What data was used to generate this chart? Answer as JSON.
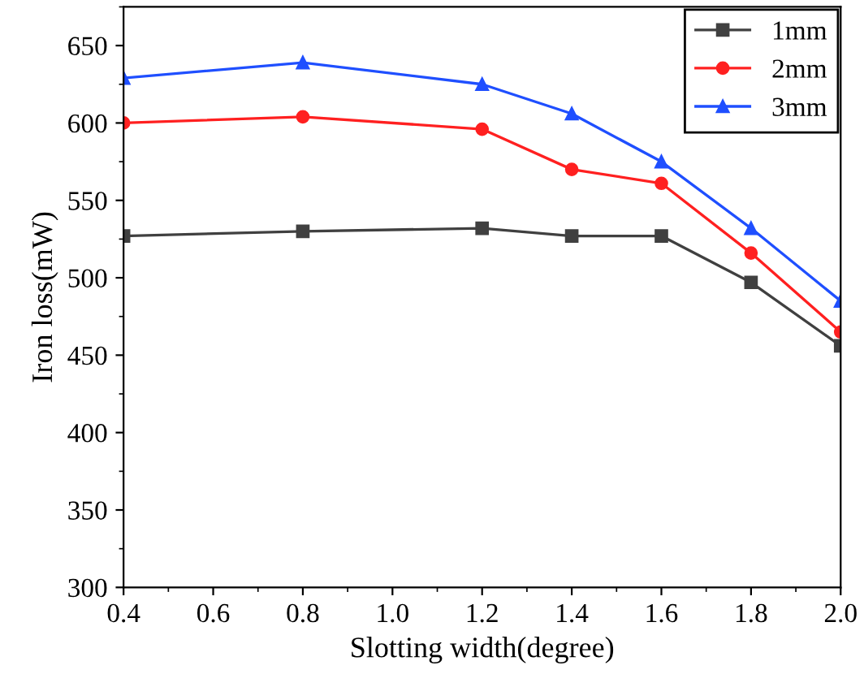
{
  "chart_data": {
    "type": "line",
    "xlabel": "Slotting width(degree)",
    "ylabel": "Iron loss(mW)",
    "x": [
      0.4,
      0.8,
      1.2,
      1.4,
      1.6,
      1.8,
      2.0
    ],
    "series": [
      {
        "name": "1mm",
        "color": "#404040",
        "marker": "square",
        "values": [
          527,
          530,
          532,
          527,
          527,
          497,
          456
        ]
      },
      {
        "name": "2mm",
        "color": "#ff2020",
        "marker": "circle",
        "values": [
          600,
          604,
          596,
          570,
          561,
          516,
          465
        ]
      },
      {
        "name": "3mm",
        "color": "#1f4fff",
        "marker": "triangle",
        "values": [
          629,
          639,
          625,
          606,
          575,
          532,
          485
        ]
      }
    ],
    "xlim": [
      0.4,
      2.0
    ],
    "xticks": [
      0.4,
      0.6,
      0.8,
      {
        "value": 1.0,
        "label": "1.0"
      },
      1.2,
      1.4,
      1.6,
      1.8,
      {
        "value": 2.0,
        "label": "2.0"
      }
    ],
    "ylim": [
      300,
      675
    ],
    "yticks": [
      300,
      350,
      400,
      450,
      500,
      550,
      600,
      650
    ],
    "grid": false,
    "legend": "top right",
    "line_style": "solid"
  }
}
